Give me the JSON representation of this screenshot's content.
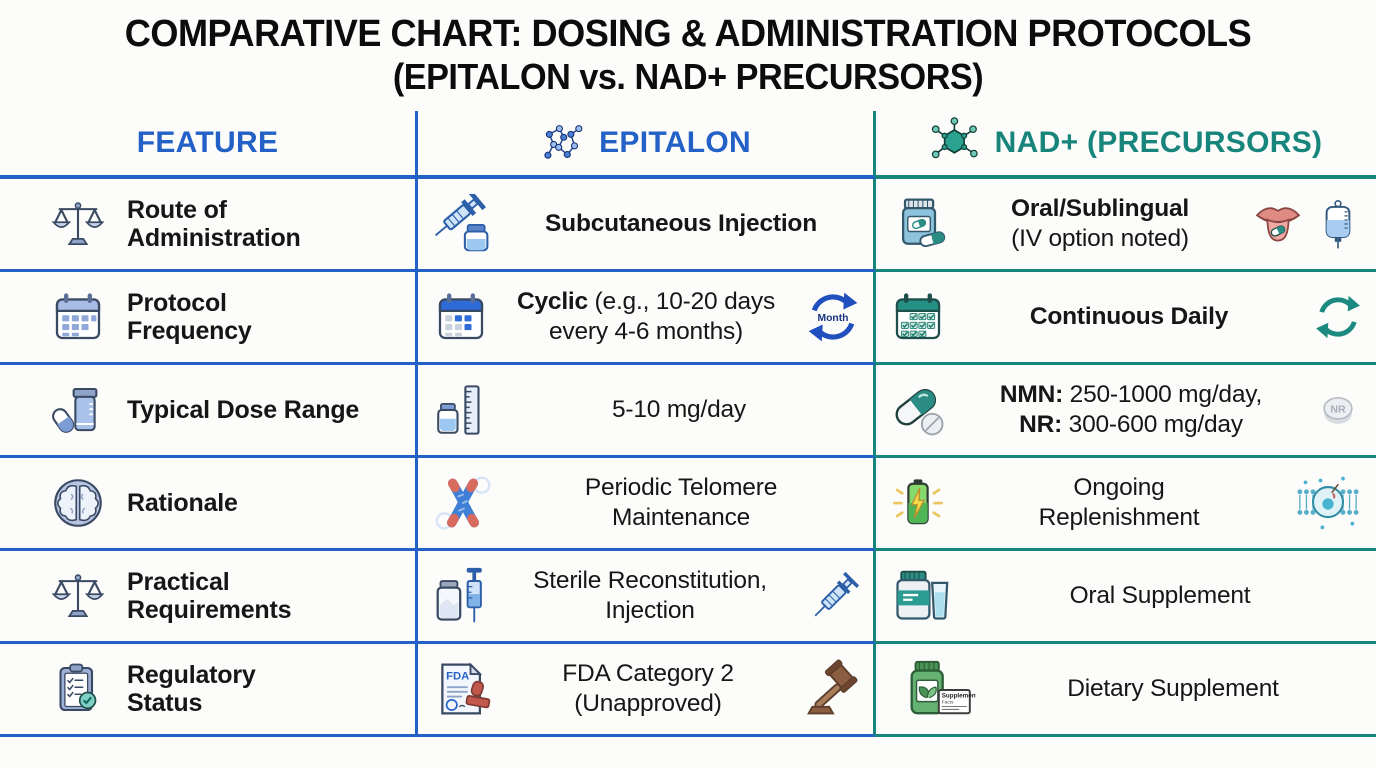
{
  "title": {
    "line1": "COMPARATIVE CHART: DOSING & ADMINISTRATION PROTOCOLS",
    "line2": "(EPITALON vs. NAD+ PRECURSORS)"
  },
  "colors": {
    "blue": "#2361c6",
    "teal": "#17857b",
    "ink": "#161616"
  },
  "header": {
    "feature": {
      "label": "FEATURE"
    },
    "epitalon": {
      "label": "EPITALON",
      "icon": "molecule-blue"
    },
    "nad": {
      "label": "NAD+ (PRECURSORS)",
      "icon": "molecule-teal"
    }
  },
  "rows": [
    {
      "feature": {
        "icon": "balance-scale",
        "label1": "Route of",
        "label2": "Administration"
      },
      "epitalon": {
        "icon": "syringe-vial",
        "text": "Subcutaneous Injection"
      },
      "nad": {
        "icon": "pill-jar",
        "line1": "Oral/Sublingual",
        "line2": "(IV option noted)",
        "icon_right1": "tongue-pill",
        "icon_right2": "iv-bag"
      }
    },
    {
      "feature": {
        "icon": "calendar",
        "label1": "Protocol",
        "label2": "Frequency"
      },
      "epitalon": {
        "icon": "calendar-cyclic",
        "bold": "Cyclic",
        "rest1": " (e.g., 10-20 days",
        "rest2": "every 4-6 months)",
        "icon_right": "month-cycle",
        "icon_right_text": "Month"
      },
      "nad": {
        "icon": "calendar-checks",
        "text": "Continuous Daily",
        "icon_right": "cycle-teal"
      }
    },
    {
      "feature": {
        "icon": "pill-bottle",
        "label1": "Typical Dose Range"
      },
      "epitalon": {
        "icon": "vial-ruler",
        "text": "5-10 mg/day"
      },
      "nad": {
        "icon": "capsule-tablet",
        "line1_bold": "NMN:",
        "line1_rest": " 250-1000 mg/day,",
        "line2_bold": "NR:",
        "line2_rest": " 300-600 mg/day",
        "icon_right": "nr-tablet",
        "icon_right_text": "NR"
      }
    },
    {
      "feature": {
        "icon": "brain",
        "label1": "Rationale"
      },
      "epitalon": {
        "icon": "chromosome",
        "line1": "Periodic Telomere",
        "line2": "Maintenance"
      },
      "nad": {
        "icon": "battery",
        "line1": "Ongoing",
        "line2": "Replenishment",
        "icon_right": "cell-membrane"
      }
    },
    {
      "feature": {
        "icon": "balance-scale",
        "label1": "Practical",
        "label2": "Requirements"
      },
      "epitalon": {
        "icon": "vial-syringe",
        "line1": "Sterile Reconstitution,",
        "line2": "Injection",
        "icon_right": "syringe"
      },
      "nad": {
        "icon": "supplement-glass",
        "text": "Oral Supplement"
      }
    },
    {
      "feature": {
        "icon": "clipboard-check",
        "label1": "Regulatory",
        "label2": "Status"
      },
      "epitalon": {
        "icon": "fda-doc",
        "icon_text": "FDA",
        "line1": "FDA Category 2",
        "line2": "(Unapproved)",
        "icon_right": "gavel"
      },
      "nad": {
        "icon": "green-bottle",
        "icon_text": "Supplement Facts",
        "text": "Dietary Supplement"
      }
    }
  ],
  "chart_data": {
    "type": "table",
    "title": "COMPARATIVE CHART: DOSING & ADMINISTRATION PROTOCOLS (EPITALON vs. NAD+ PRECURSORS)",
    "columns": [
      "FEATURE",
      "EPITALON",
      "NAD+ (PRECURSORS)"
    ],
    "rows": [
      [
        "Route of Administration",
        "Subcutaneous Injection",
        "Oral/Sublingual (IV option noted)"
      ],
      [
        "Protocol Frequency",
        "Cyclic (e.g., 10-20 days every 4-6 months)",
        "Continuous Daily"
      ],
      [
        "Typical Dose Range",
        "5-10 mg/day",
        "NMN: 250-1000 mg/day, NR: 300-600 mg/day"
      ],
      [
        "Rationale",
        "Periodic Telomere Maintenance",
        "Ongoing Replenishment"
      ],
      [
        "Practical Requirements",
        "Sterile Reconstitution, Injection",
        "Oral Supplement"
      ],
      [
        "Regulatory Status",
        "FDA Category 2 (Unapproved)",
        "Dietary Supplement"
      ]
    ]
  }
}
